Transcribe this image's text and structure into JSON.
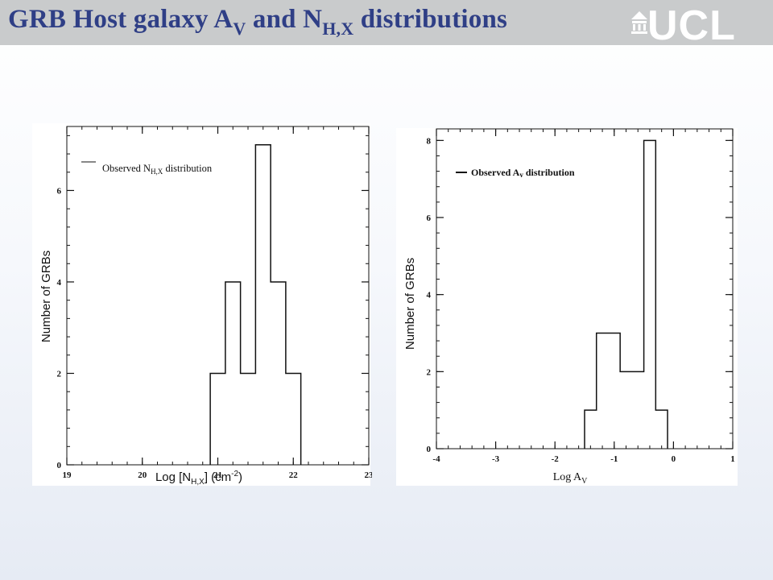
{
  "slide": {
    "title_main": "GRB Host galaxy A",
    "title_sub1": "V",
    "title_mid": " and N",
    "title_sub2": "H,X",
    "title_end": " distributions",
    "logo_text": "UCL",
    "title_color": "#2f3f86",
    "band_color": "#c9cbcc"
  },
  "chart_data": [
    {
      "type": "bar",
      "style": "step-histogram",
      "bin_edges": [
        20.9,
        21.1,
        21.3,
        21.5,
        21.7,
        21.9,
        22.1
      ],
      "values": [
        2,
        4,
        2,
        7,
        4,
        2
      ],
      "xlim": [
        19,
        23
      ],
      "ylim": [
        0,
        7.4
      ],
      "xticks": [
        "19",
        "20",
        "21",
        "22",
        "23"
      ],
      "yticks": [
        "0",
        "2",
        "4",
        "6"
      ],
      "ylabel": "Number of GRBs",
      "xlabel_main": "Log [N",
      "xlabel_sub": "H,X",
      "xlabel_unit": "] (cm",
      "xlabel_sup": "-2",
      "xlabel_close": ")",
      "legend_main": "Observed N",
      "legend_sub": "H,X",
      "legend_rest": " distribution",
      "legend_placement": "top-left"
    },
    {
      "type": "bar",
      "style": "step-histogram",
      "bin_edges": [
        -1.5,
        -1.3,
        -0.9,
        -0.5,
        -0.3,
        -0.1
      ],
      "values": [
        1,
        3,
        2,
        8,
        1
      ],
      "xlim": [
        -4,
        1
      ],
      "ylim": [
        0,
        8.3
      ],
      "xticks": [
        "-4",
        "-3",
        "-2",
        "-1",
        "0",
        "1"
      ],
      "yticks": [
        "0",
        "2",
        "4",
        "6",
        "8"
      ],
      "ylabel": "Number of GRBs",
      "xlabel_main": "Log A",
      "xlabel_sub": "V",
      "legend_main": "Observed A",
      "legend_sub": "v",
      "legend_rest": " distribution",
      "legend_placement": "top-left"
    }
  ]
}
